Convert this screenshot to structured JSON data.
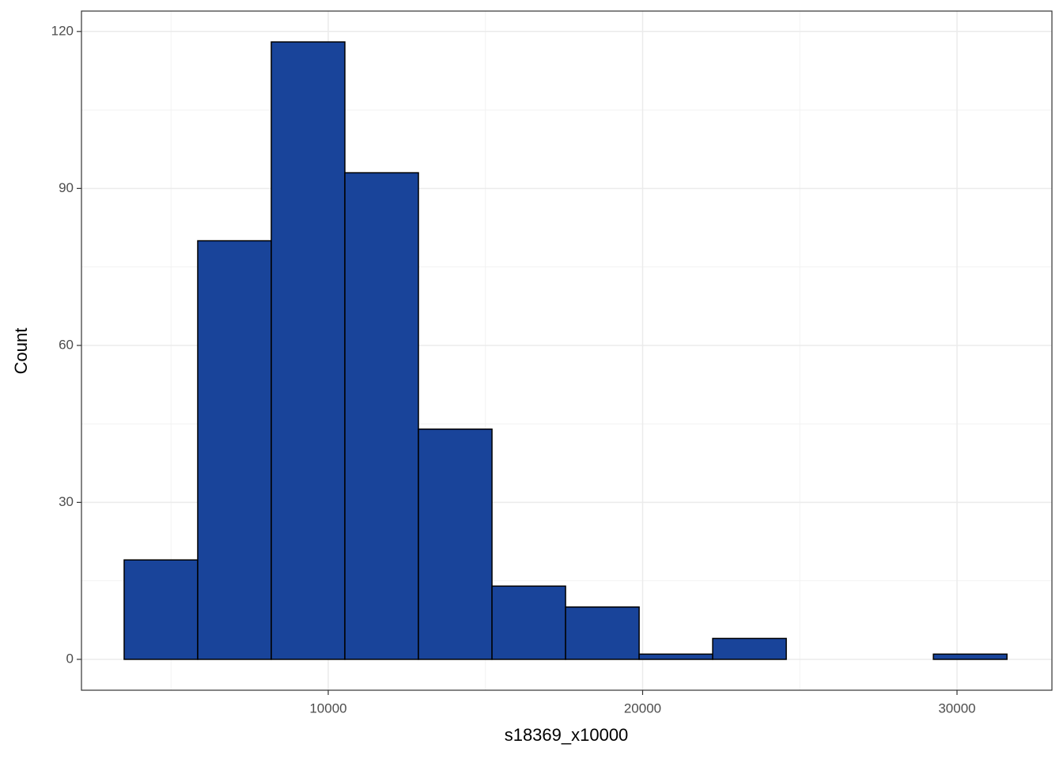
{
  "chart_data": {
    "type": "histogram",
    "x_label": "s18369_x10000",
    "y_label": "Count",
    "bins": [
      3509,
      5849,
      8189,
      10529,
      12869,
      15209,
      17549,
      19889,
      22229,
      24569,
      26909,
      29249,
      31589
    ],
    "values": [
      19,
      80,
      118,
      93,
      44,
      14,
      10,
      1,
      4,
      0,
      0,
      1
    ],
    "color": "#19449a",
    "edge_color": "#000000",
    "xlim": [
      2151,
      33019
    ],
    "ylim": [
      -5.9,
      123.9
    ],
    "xticks": [
      10000,
      20000,
      30000
    ],
    "yticks": [
      0,
      30,
      60,
      90,
      120
    ],
    "x_minor_grid": [
      5000,
      15000,
      25000
    ],
    "y_minor_grid": [
      15,
      45,
      75,
      105
    ],
    "grid": true
  }
}
